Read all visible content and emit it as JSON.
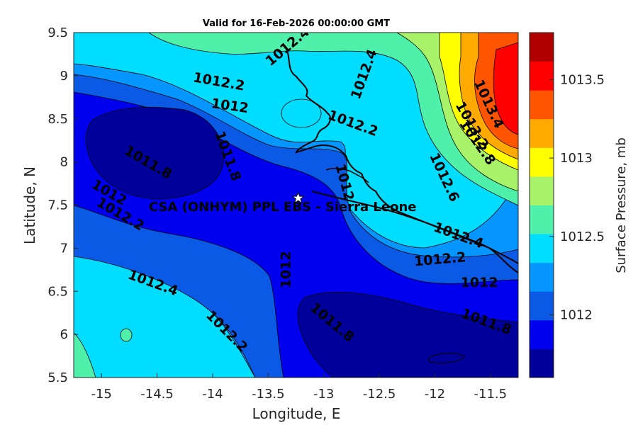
{
  "title": "Valid for 16-Feb-2026 00:00:00 GMT",
  "xlabel": "Longitude, E",
  "ylabel": "Latitude, N",
  "colorbar_label": "Surface Pressure, mb",
  "site_label": "CSA (ONHYM) PPL EBS  - Sierra Leone",
  "site_location": {
    "lon": -13.23,
    "lat": 7.58
  },
  "x_ticks": [
    "-15",
    "-14.5",
    "-14",
    "-13.5",
    "-13",
    "-12.5",
    "-12",
    "-11.5"
  ],
  "y_ticks": [
    "9.5",
    "9",
    "8.5",
    "8",
    "7.5",
    "7",
    "6.5",
    "6",
    "5.5"
  ],
  "colorbar_ticks": [
    "1013.5",
    "1013",
    "1012.5",
    "1012"
  ],
  "colorbar_colors": [
    "#00009a",
    "#0000ee",
    "#0a5ae6",
    "#0596ff",
    "#00ddff",
    "#4ff0aa",
    "#a8f36a",
    "#ffff00",
    "#ffaa00",
    "#ff5500",
    "#ff0000",
    "#b00000"
  ],
  "chart_data": {
    "type": "contour",
    "xlim": [
      -15.25,
      -11.25
    ],
    "ylim": [
      5.5,
      9.5
    ],
    "clim": [
      1011.6,
      1013.8
    ],
    "contour_interval": 0.2,
    "contour_labels": [
      {
        "text": "1012.4",
        "lon": -14.55,
        "lat": 6.55
      },
      {
        "text": "1012.2",
        "lon": -14.85,
        "lat": 7.35
      },
      {
        "text": "1012",
        "lon": -14.95,
        "lat": 7.6
      },
      {
        "text": "1011.8",
        "lon": -14.6,
        "lat": 7.95
      },
      {
        "text": "1011.8",
        "lon": -13.9,
        "lat": 8.05
      },
      {
        "text": "1012.2",
        "lon": -13.95,
        "lat": 8.88
      },
      {
        "text": "1012",
        "lon": -13.85,
        "lat": 8.6
      },
      {
        "text": "1012.4",
        "lon": -13.3,
        "lat": 9.3
      },
      {
        "text": "1012.4",
        "lon": -12.6,
        "lat": 9.0
      },
      {
        "text": "1012.2",
        "lon": -12.75,
        "lat": 8.4
      },
      {
        "text": "1012",
        "lon": -12.85,
        "lat": 7.75
      },
      {
        "text": "1012",
        "lon": -13.3,
        "lat": 6.75
      },
      {
        "text": "1011.8",
        "lon": -12.95,
        "lat": 6.1
      },
      {
        "text": "1012.2",
        "lon": -13.9,
        "lat": 6.0
      },
      {
        "text": "1012.4",
        "lon": -11.8,
        "lat": 7.1
      },
      {
        "text": "1012.2",
        "lon": -11.95,
        "lat": 6.82
      },
      {
        "text": "1012",
        "lon": -11.6,
        "lat": 6.55
      },
      {
        "text": "1011.8",
        "lon": -11.55,
        "lat": 6.1
      },
      {
        "text": "1012.6",
        "lon": -11.95,
        "lat": 7.8
      },
      {
        "text": "1012.8",
        "lon": -11.65,
        "lat": 8.2
      },
      {
        "text": "1013.2",
        "lon": -11.7,
        "lat": 8.4
      },
      {
        "text": "1013.4",
        "lon": -11.55,
        "lat": 8.65
      }
    ]
  }
}
